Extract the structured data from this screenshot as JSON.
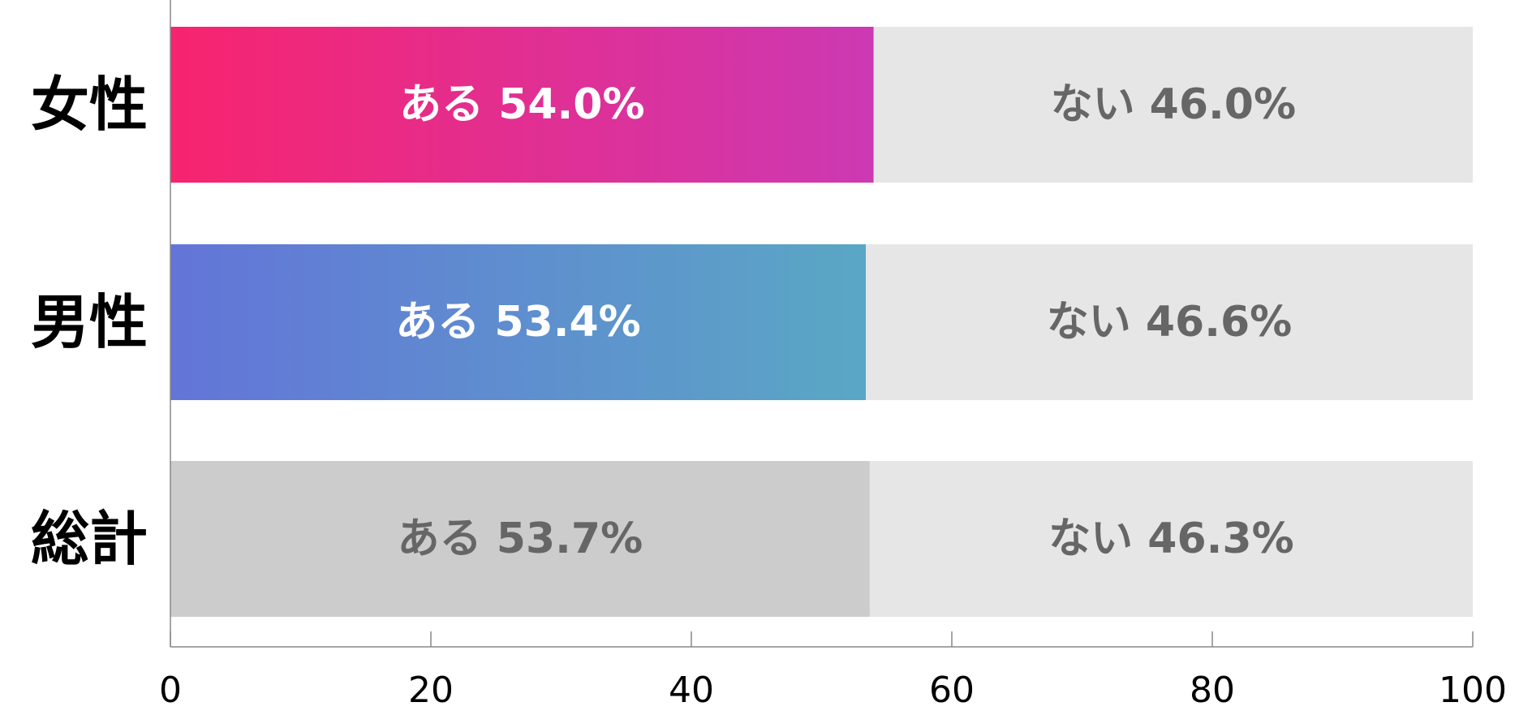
{
  "chart_data": {
    "type": "bar",
    "orientation": "horizontal",
    "stacked": true,
    "categories": [
      "女性",
      "男性",
      "総計"
    ],
    "series": [
      {
        "name": "ある",
        "values": [
          54.0,
          53.4,
          53.7
        ],
        "labels": [
          "ある 54.0%",
          "ある 53.4%",
          "ある 53.7%"
        ]
      },
      {
        "name": "ない",
        "values": [
          46.0,
          46.6,
          46.3
        ],
        "labels": [
          "ない 46.0%",
          "ない 46.6%",
          "ない 46.3%"
        ]
      }
    ],
    "xlim": [
      0,
      100
    ],
    "xticks": [
      0,
      20,
      40,
      60,
      80,
      100
    ],
    "xtick_labels": [
      "0",
      "20",
      "40",
      "60",
      "80",
      "100"
    ],
    "grid": false,
    "legend": "none",
    "colors": {
      "female_gradient": [
        "#f7246f",
        "#cc39b3"
      ],
      "male_gradient": [
        "#6375d8",
        "#5aa7c5"
      ],
      "total_yes": "#cccccc",
      "no_segment": "#e6e6e6",
      "label_on_color": "#ffffff",
      "label_on_gray": "#666666",
      "axis": "#888888"
    }
  }
}
